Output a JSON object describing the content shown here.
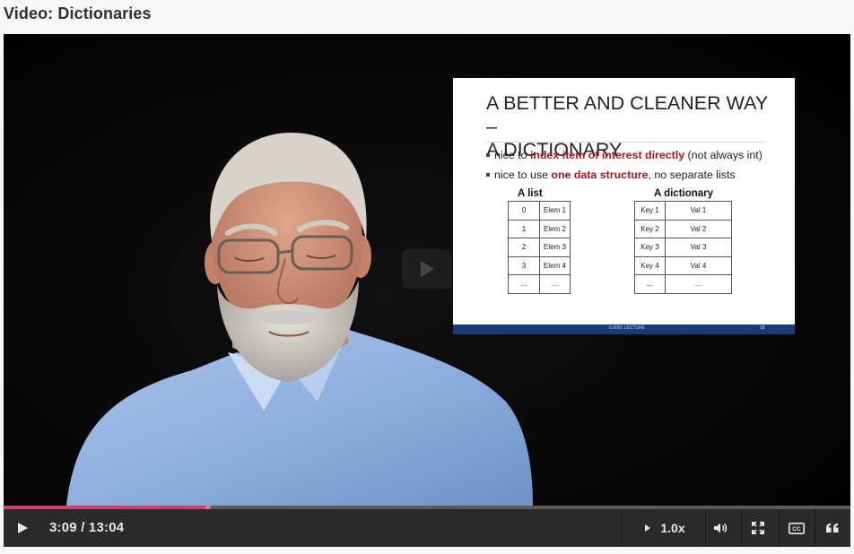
{
  "page": {
    "title": "Video: Dictionaries"
  },
  "slide": {
    "title_line1": "A BETTER AND CLEANER WAY –",
    "title_line2": "A DICTIONARY",
    "bullet1": {
      "pre": "nice to ",
      "em": "index item of interest directly",
      "post": " (not always int)"
    },
    "bullet2": {
      "pre": "nice to use ",
      "em": "one data structure",
      "post": ", no separate lists"
    },
    "list_header": "A list",
    "dict_header": "A dictionary",
    "list_rows": [
      [
        "0",
        "Elem 1"
      ],
      [
        "1",
        "Elem 2"
      ],
      [
        "2",
        "Elem 3"
      ],
      [
        "3",
        "Elem 4"
      ],
      [
        "…",
        "…"
      ]
    ],
    "dict_rows": [
      [
        "Key 1",
        "Val 1"
      ],
      [
        "Key 2",
        "Val 2"
      ],
      [
        "Key 3",
        "Val 3"
      ],
      [
        "Key 4",
        "Val 4"
      ],
      [
        "…",
        "…"
      ]
    ],
    "footer_text": "6.0001 LECTURE",
    "page_number": "18"
  },
  "player": {
    "current_time": "3:09",
    "duration": "13:04",
    "time_display": "3:09 / 13:04",
    "progress_fraction": 0.2411,
    "speed": "1.0x",
    "icons": {
      "play": "play-icon",
      "speed": "caret-right-icon",
      "volume": "volume-icon",
      "fullscreen": "fullscreen-icon",
      "captions": "cc-icon",
      "transcript": "quote-icon"
    },
    "colors": {
      "progress": "#c8426b",
      "bar": "#2a2a2a"
    }
  }
}
